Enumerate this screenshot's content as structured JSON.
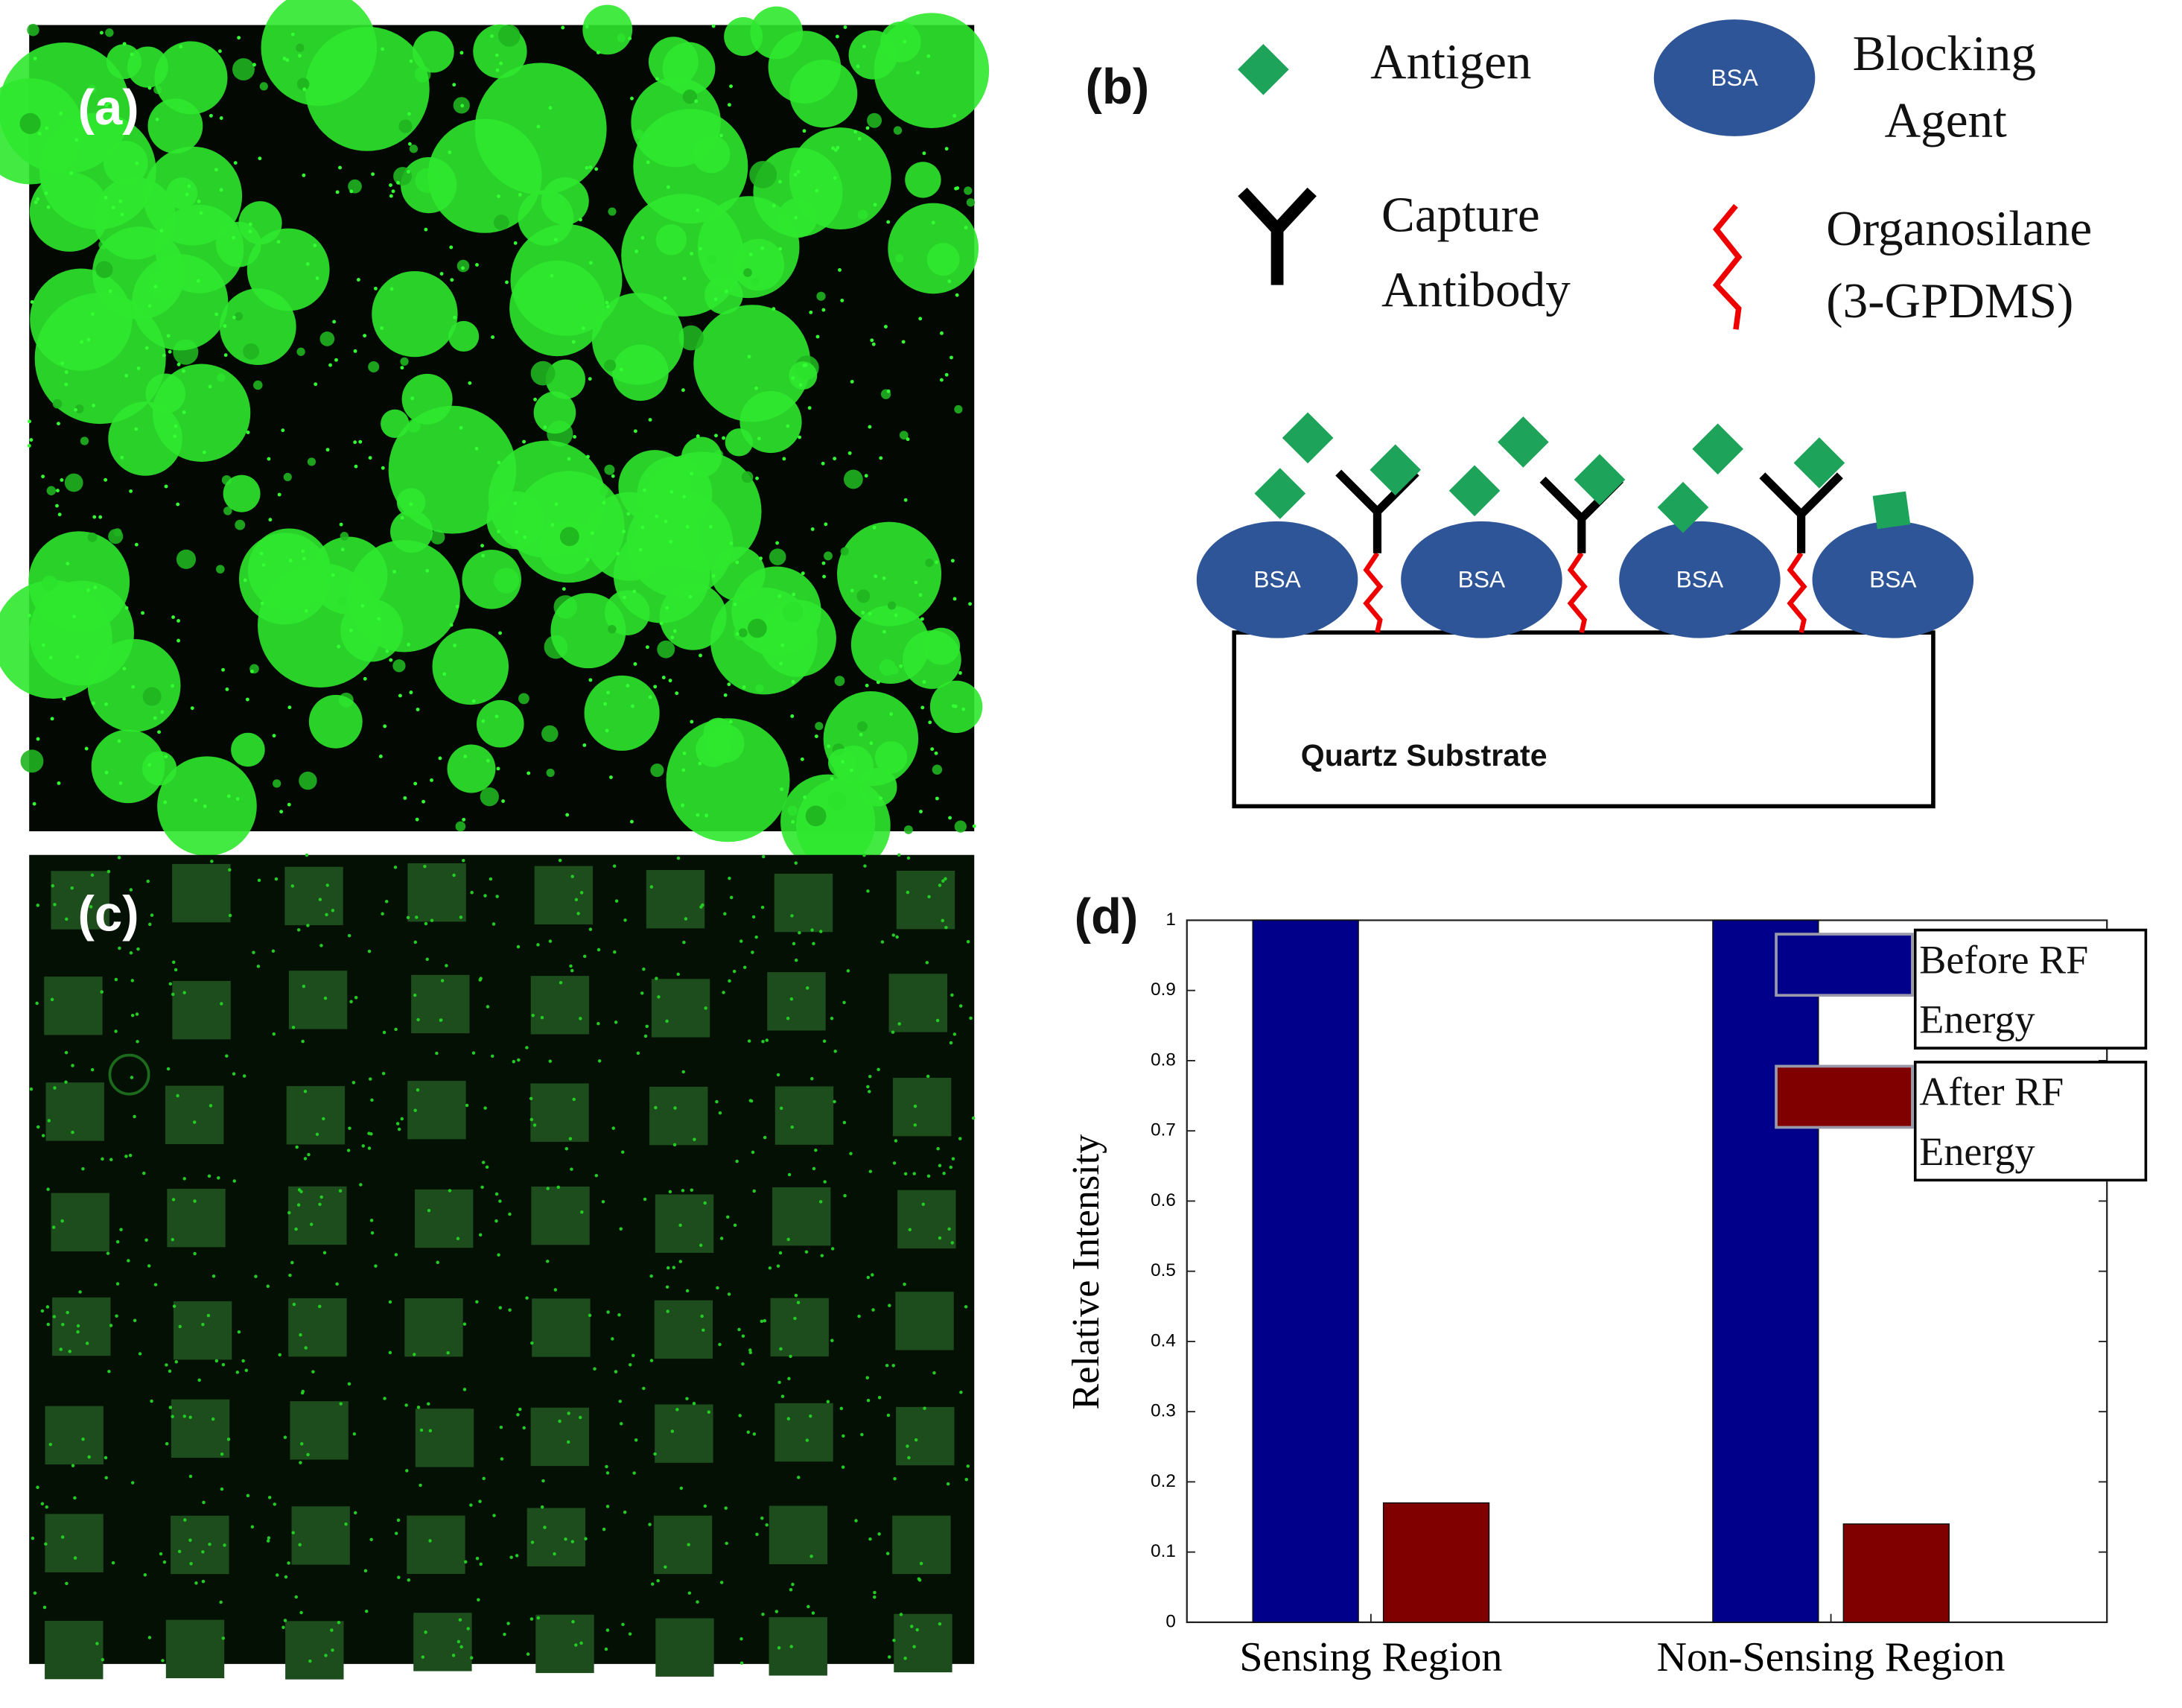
{
  "panels": {
    "a": {
      "label": "(a)"
    },
    "b": {
      "label": "(b)",
      "antigen": "Antigen",
      "blocking_agent": [
        "Blocking",
        "Agent"
      ],
      "bsa": "BSA",
      "capture_antibody": [
        "Capture",
        "Antibody"
      ],
      "organosilane": [
        "Organosilane",
        "(3-GPDMS)"
      ],
      "substrate": "Quartz Substrate"
    },
    "c": {
      "label": "(c)"
    },
    "d": {
      "label": "(d)"
    }
  },
  "chart_data": {
    "type": "bar",
    "y_label": "Relative Intensity",
    "categories": [
      "Sensing Region",
      "Non-Sensing Region"
    ],
    "series": [
      {
        "name": "Before RF Energy",
        "color": "#00008b",
        "values": [
          1,
          1
        ]
      },
      {
        "name": "After RF Energy",
        "color": "#800000",
        "values": [
          0.17,
          0.14
        ]
      }
    ],
    "ylim": [
      0,
      1
    ],
    "yticks": [
      0,
      0.1,
      0.2,
      0.3,
      0.4,
      0.5,
      0.6,
      0.7,
      0.8,
      0.9,
      1
    ],
    "legend": "upper right"
  }
}
